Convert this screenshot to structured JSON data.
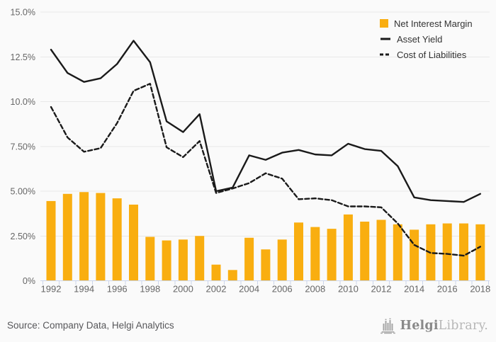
{
  "chart_data": {
    "type": "combo-bar-line",
    "title": "",
    "categories": [
      "1992",
      "1993",
      "1994",
      "1995",
      "1996",
      "1997",
      "1998",
      "1999",
      "2000",
      "2001",
      "2002",
      "2003",
      "2004",
      "2005",
      "2006",
      "2007",
      "2008",
      "2009",
      "2010",
      "2011",
      "2012",
      "2013",
      "2014",
      "2015",
      "2016",
      "2017",
      "2018"
    ],
    "series": [
      {
        "name": "Net Interest Margin",
        "type": "bar",
        "color": "#f9ae10",
        "values": [
          4.45,
          4.85,
          4.95,
          4.9,
          4.6,
          4.25,
          2.45,
          2.25,
          2.3,
          2.5,
          0.9,
          0.6,
          2.4,
          1.75,
          2.3,
          3.25,
          3.0,
          2.9,
          3.7,
          3.3,
          3.4,
          3.15,
          2.85,
          3.15,
          3.2,
          3.2,
          3.15
        ]
      },
      {
        "name": "Asset Yield",
        "type": "line",
        "dash": "solid",
        "color": "#1a1a1a",
        "values": [
          12.9,
          11.6,
          11.1,
          11.3,
          12.1,
          13.4,
          12.2,
          8.9,
          8.3,
          9.3,
          5.0,
          5.2,
          7.0,
          6.75,
          7.15,
          7.3,
          7.05,
          7.0,
          7.65,
          7.35,
          7.25,
          6.4,
          4.65,
          4.5,
          4.45,
          4.4,
          4.85
        ]
      },
      {
        "name": "Cost of Liabilities",
        "type": "line",
        "dash": "dashed",
        "color": "#1a1a1a",
        "values": [
          9.7,
          8.0,
          7.2,
          7.4,
          8.8,
          10.6,
          11.0,
          7.45,
          6.9,
          7.8,
          4.9,
          5.15,
          5.45,
          6.0,
          5.7,
          4.55,
          4.6,
          4.5,
          4.15,
          4.15,
          4.1,
          3.2,
          2.0,
          1.55,
          1.5,
          1.4,
          1.9
        ]
      }
    ],
    "ylim": [
      0,
      15
    ],
    "yticks": {
      "values": [
        0,
        2.5,
        5,
        7.5,
        10,
        12.5,
        15
      ],
      "labels": [
        "0%",
        "2.50%",
        "5.00%",
        "7.50%",
        "10.0%",
        "12.5%",
        "15.0%"
      ]
    },
    "xticks_labeled": [
      "1992",
      "1994",
      "1996",
      "1998",
      "2000",
      "2002",
      "2004",
      "2006",
      "2008",
      "2010",
      "2012",
      "2014",
      "2016",
      "2018"
    ],
    "grid": "horizontal",
    "legend_position": "top-right-inside",
    "colors": {
      "background": "#fafafa",
      "gridline": "#e8e8e8",
      "axis_line": "#ccd6eb",
      "tick_label": "#666666",
      "legend_text": "#333333"
    }
  },
  "footer": {
    "source": "Source: Company Data, Helgi Analytics",
    "logo": {
      "brand_bold": "Helgi",
      "brand_light": "Library",
      "suffix": "."
    }
  }
}
